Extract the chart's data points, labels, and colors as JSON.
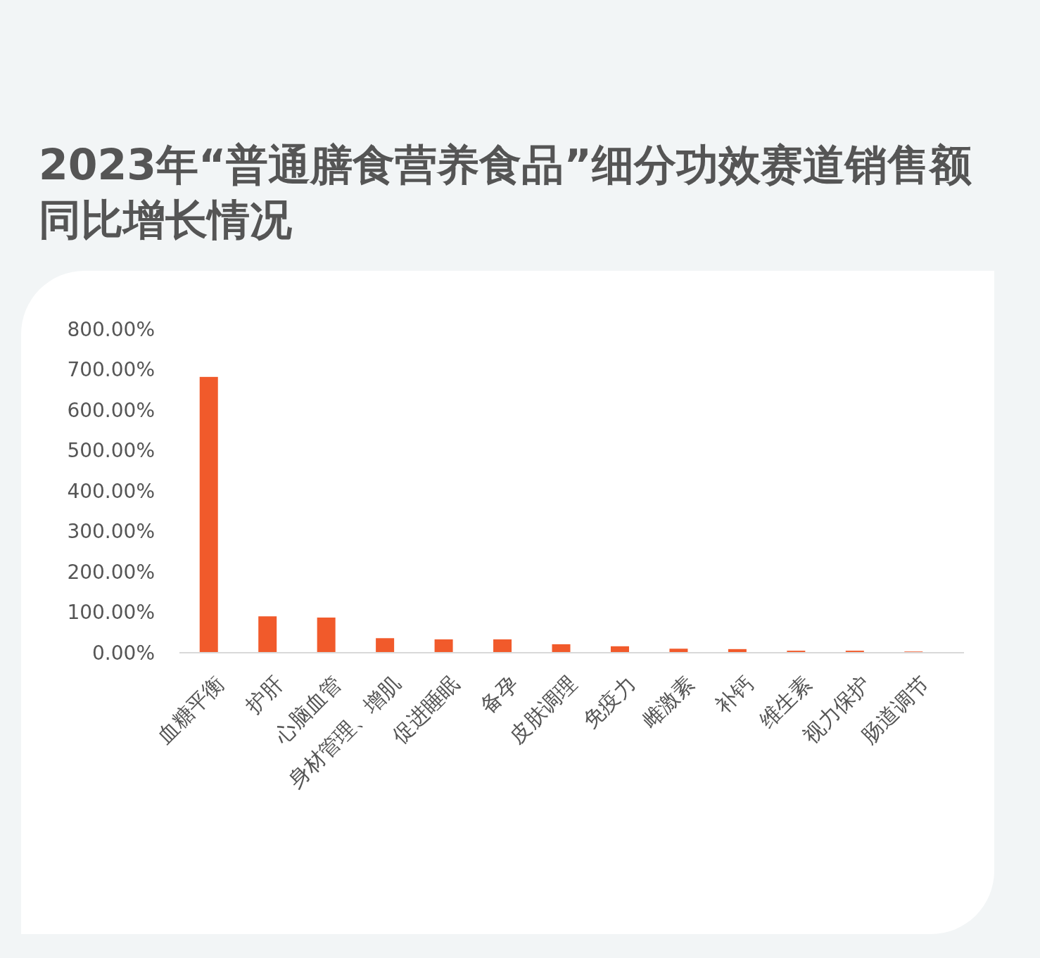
{
  "chart_data": {
    "type": "bar",
    "title": "2023年“普通膳食营养食品”细分功效赛道销售额同比增长情况",
    "categories": [
      "血糖平衡",
      "护肝",
      "心脑血管",
      "身材管理、增肌",
      "促进睡眠",
      "备孕",
      "皮肤调理",
      "免疫力",
      "雌激素",
      "补钙",
      "维生素",
      "视力保护",
      "肠道调节"
    ],
    "values": [
      682,
      90,
      87,
      36,
      33,
      33,
      21,
      16,
      10,
      9,
      5,
      5,
      3
    ],
    "color": "#f15a2b",
    "ylim": [
      0,
      800
    ],
    "yticks": [
      {
        "value": 0,
        "label": "0.00%"
      },
      {
        "value": 100,
        "label": "100.00%"
      },
      {
        "value": 200,
        "label": "200.00%"
      },
      {
        "value": 300,
        "label": "300.00%"
      },
      {
        "value": 400,
        "label": "400.00%"
      },
      {
        "value": 500,
        "label": "500.00%"
      },
      {
        "value": 600,
        "label": "600.00%"
      },
      {
        "value": 700,
        "label": "700.00%"
      },
      {
        "value": 800,
        "label": "800.00%"
      }
    ]
  }
}
